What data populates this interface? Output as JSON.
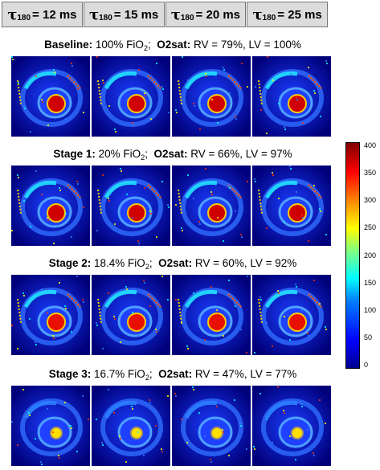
{
  "header": {
    "columns": [
      {
        "symbol": "τ",
        "subscript": "180",
        "value": "= 12 ms"
      },
      {
        "symbol": "τ",
        "subscript": "180",
        "value": "= 15 ms"
      },
      {
        "symbol": "τ",
        "subscript": "180",
        "value": "= 20 ms"
      },
      {
        "symbol": "τ",
        "subscript": "180",
        "value": "= 25 ms"
      }
    ]
  },
  "stages": [
    {
      "name": "Baseline:",
      "fio2": "100% FiO",
      "fio2_sub": "2",
      "sep": ";",
      "o2_label": "O2sat:",
      "o2_values": "RV = 79%, LV = 100%",
      "intensity": 1.0
    },
    {
      "name": "Stage 1:",
      "fio2": "20% FiO",
      "fio2_sub": "2",
      "sep": ";",
      "o2_label": "O2sat:",
      "o2_values": "RV = 66%, LV = 97%",
      "intensity": 0.85
    },
    {
      "name": "Stage 2:",
      "fio2": "18.4% FiO",
      "fio2_sub": "2",
      "sep": ";",
      "o2_label": "O2sat:",
      "o2_values": "RV = 60%, LV = 92%",
      "intensity": 0.7
    },
    {
      "name": "Stage 3:",
      "fio2": "16.7% FiO",
      "fio2_sub": "2",
      "sep": ";",
      "o2_label": "O2sat:",
      "o2_values": "RV = 47%, LV = 77%",
      "intensity": 0.3
    }
  ],
  "colorbar": {
    "ticks": [
      "400",
      "350",
      "300",
      "250",
      "200",
      "150",
      "100",
      "50",
      "0"
    ]
  }
}
